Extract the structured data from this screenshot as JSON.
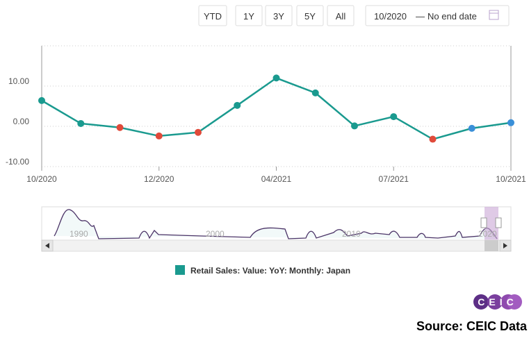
{
  "buttons": [
    "YTD",
    "1Y",
    "3Y",
    "5Y",
    "All"
  ],
  "date_range": {
    "start": "10/2020",
    "separator": "—",
    "end": "No end date"
  },
  "chart_data": {
    "type": "line",
    "categories": [
      "10/2020",
      null,
      null,
      "12/2020",
      null,
      null,
      "04/2021",
      null,
      null,
      "07/2021",
      null,
      null,
      "10/2021"
    ],
    "series": [
      {
        "name": "Retail Sales: Value: YoY: Monthly: Japan",
        "color": "#1a9a8f",
        "values": [
          6.4,
          0.7,
          -0.3,
          -2.4,
          -1.5,
          5.2,
          12.0,
          8.3,
          0.1,
          2.4,
          -3.2,
          -0.5,
          0.9
        ],
        "point_colors": [
          "#1a9a8f",
          "#1a9a8f",
          "#e04a3a",
          "#e04a3a",
          "#e04a3a",
          "#1a9a8f",
          "#1a9a8f",
          "#1a9a8f",
          "#1a9a8f",
          "#1a9a8f",
          "#e04a3a",
          "#3a8fd8",
          "#3a8fd8"
        ]
      }
    ],
    "ylim": [
      -10,
      20
    ],
    "yticks": [
      {
        "value": -10,
        "label": "-10.00"
      },
      {
        "value": 0,
        "label": "0.00"
      },
      {
        "value": 10,
        "label": "10.00"
      },
      20
    ],
    "grid": true
  },
  "navigator": {
    "labels": [
      "1990",
      "2000",
      "2010",
      "2020"
    ]
  },
  "logo": "CEIC",
  "source": "Source: CEIC Data"
}
